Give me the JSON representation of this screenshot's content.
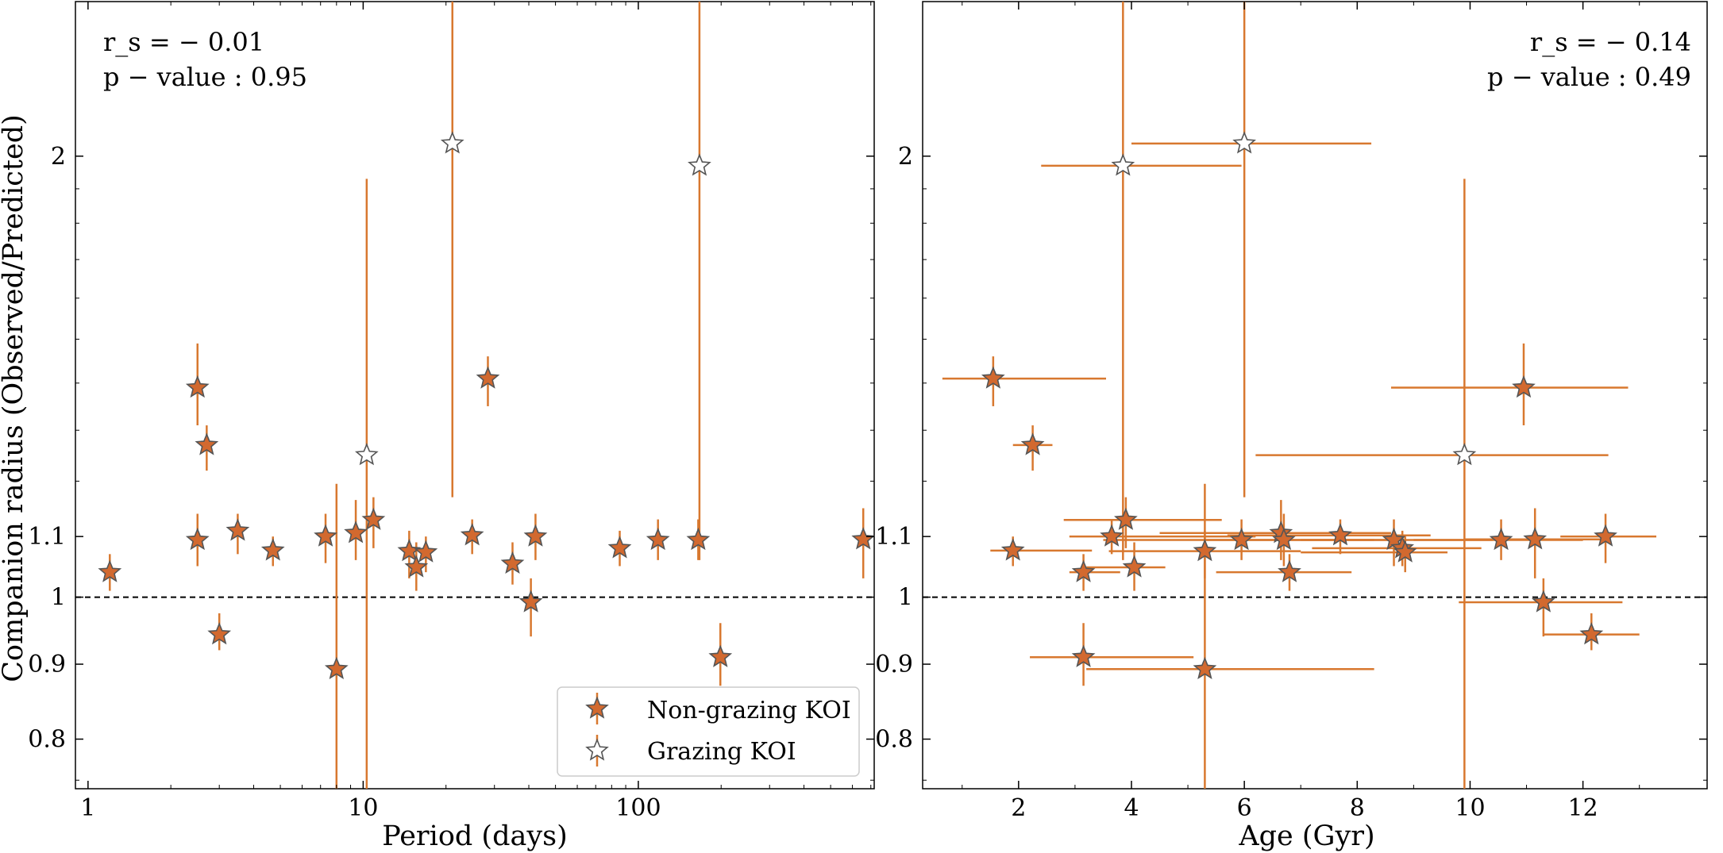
{
  "colors": {
    "nongrazing_fill": "#d2692f",
    "grazing_fill": "#ffffff",
    "errorbar": "#d8782f",
    "marker_edge": "#555555",
    "refline": "#000000"
  },
  "legend_entries": [
    "Non-grazing KOI",
    "Grazing KOI"
  ],
  "shared": {
    "ylabel": "Companion radius (Observed/Predicted)",
    "ytick_labels": [
      "0.8",
      "0.9",
      "1",
      "1.1",
      "2"
    ],
    "ytick_values": [
      0.8,
      0.9,
      1.0,
      1.1,
      2.0
    ],
    "ylim_log": [
      0.74,
      2.55
    ],
    "reference_line_y": 1.0
  },
  "chart_data": [
    {
      "type": "scatter",
      "title": "",
      "xscale": "log",
      "xlabel": "Period (days)",
      "xlim": [
        0.9,
        720
      ],
      "xtick_values": [
        1,
        10,
        100
      ],
      "xtick_labels": [
        "1",
        "10",
        "100"
      ],
      "ylabel": "Companion radius (Observed/Predicted)",
      "stat_rs": "r_s = − 0.01",
      "stat_p": "p − value : 0.95",
      "legend": "bottom-right",
      "series": [
        {
          "name": "Non-grazing KOI",
          "points": [
            {
              "x": 1.2,
              "y": 1.04,
              "ylo": 1.01,
              "yhi": 1.07
            },
            {
              "x": 2.5,
              "y": 1.094,
              "ylo": 1.05,
              "yhi": 1.14
            },
            {
              "x": 2.5,
              "y": 1.39,
              "ylo": 1.31,
              "yhi": 1.49
            },
            {
              "x": 2.7,
              "y": 1.27,
              "ylo": 1.22,
              "yhi": 1.31
            },
            {
              "x": 3.0,
              "y": 0.943,
              "ylo": 0.92,
              "yhi": 0.975
            },
            {
              "x": 3.5,
              "y": 1.11,
              "ylo": 1.07,
              "yhi": 1.14
            },
            {
              "x": 4.7,
              "y": 1.076,
              "ylo": 1.05,
              "yhi": 1.1
            },
            {
              "x": 7.3,
              "y": 1.1,
              "ylo": 1.055,
              "yhi": 1.14
            },
            {
              "x": 8.0,
              "y": 0.893,
              "ylo": 0.74,
              "yhi": 1.195
            },
            {
              "x": 9.4,
              "y": 1.106,
              "ylo": 1.06,
              "yhi": 1.165
            },
            {
              "x": 10.9,
              "y": 1.129,
              "ylo": 1.08,
              "yhi": 1.17
            },
            {
              "x": 14.7,
              "y": 1.075,
              "ylo": 1.03,
              "yhi": 1.11
            },
            {
              "x": 15.6,
              "y": 1.048,
              "ylo": 1.01,
              "yhi": 1.09
            },
            {
              "x": 16.9,
              "y": 1.073,
              "ylo": 1.04,
              "yhi": 1.1
            },
            {
              "x": 24.9,
              "y": 1.102,
              "ylo": 1.07,
              "yhi": 1.13
            },
            {
              "x": 28.4,
              "y": 1.41,
              "ylo": 1.35,
              "yhi": 1.46
            },
            {
              "x": 34.9,
              "y": 1.054,
              "ylo": 1.02,
              "yhi": 1.09
            },
            {
              "x": 40.7,
              "y": 0.992,
              "ylo": 0.94,
              "yhi": 1.03
            },
            {
              "x": 42.3,
              "y": 1.1,
              "ylo": 1.06,
              "yhi": 1.14
            },
            {
              "x": 85.6,
              "y": 1.08,
              "ylo": 1.05,
              "yhi": 1.11
            },
            {
              "x": 117.9,
              "y": 1.094,
              "ylo": 1.06,
              "yhi": 1.13
            },
            {
              "x": 165.1,
              "y": 1.094,
              "ylo": 1.06,
              "yhi": 1.13
            },
            {
              "x": 198.7,
              "y": 0.91,
              "ylo": 0.87,
              "yhi": 0.96
            },
            {
              "x": 657,
              "y": 1.095,
              "ylo": 1.03,
              "yhi": 1.15
            }
          ]
        },
        {
          "name": "Grazing KOI",
          "points": [
            {
              "x": 10.3,
              "y": 1.25,
              "ylo": 0.74,
              "yhi": 1.93
            },
            {
              "x": 21.1,
              "y": 2.04,
              "ylo": 1.17,
              "yhi": 2.55
            },
            {
              "x": 166.8,
              "y": 1.97,
              "ylo": 1.06,
              "yhi": 2.55
            }
          ]
        }
      ]
    },
    {
      "type": "scatter",
      "title": "",
      "xscale": "linear",
      "xlabel": "Age (Gyr)",
      "xlim": [
        0.3,
        14.2
      ],
      "xtick_values": [
        2,
        4,
        6,
        8,
        10,
        12
      ],
      "xtick_labels": [
        "2",
        "4",
        "6",
        "8",
        "10",
        "12"
      ],
      "stat_rs": "r_s = − 0.14",
      "stat_p": "p − value : 0.49",
      "series": [
        {
          "name": "Non-grazing KOI",
          "points": [
            {
              "x": 1.55,
              "y": 1.41,
              "xlo": 0.65,
              "xhi": 3.55,
              "ylo": 1.35,
              "yhi": 1.46
            },
            {
              "x": 2.25,
              "y": 1.27,
              "xlo": 1.9,
              "xhi": 2.6,
              "ylo": 1.22,
              "yhi": 1.31
            },
            {
              "x": 1.9,
              "y": 1.076,
              "xlo": 1.5,
              "xhi": 3.3,
              "ylo": 1.05,
              "yhi": 1.1
            },
            {
              "x": 3.15,
              "y": 1.04,
              "xlo": 2.9,
              "xhi": 3.8,
              "ylo": 1.01,
              "yhi": 1.07
            },
            {
              "x": 3.15,
              "y": 0.91,
              "xlo": 2.2,
              "xhi": 5.1,
              "ylo": 0.87,
              "yhi": 0.96
            },
            {
              "x": 3.65,
              "y": 1.1,
              "xlo": 2.9,
              "xhi": 6.2,
              "ylo": 1.07,
              "yhi": 1.13
            },
            {
              "x": 3.9,
              "y": 1.129,
              "xlo": 2.8,
              "xhi": 5.6,
              "ylo": 1.08,
              "yhi": 1.17
            },
            {
              "x": 4.05,
              "y": 1.048,
              "xlo": 3.2,
              "xhi": 4.6,
              "ylo": 1.01,
              "yhi": 1.09
            },
            {
              "x": 5.3,
              "y": 1.075,
              "xlo": 3.6,
              "xhi": 7.0,
              "ylo": 1.03,
              "yhi": 1.11
            },
            {
              "x": 5.3,
              "y": 0.893,
              "xlo": 3.2,
              "xhi": 8.3,
              "ylo": 0.74,
              "yhi": 1.195
            },
            {
              "x": 5.95,
              "y": 1.094,
              "xlo": 3.5,
              "xhi": 8.8,
              "ylo": 1.06,
              "yhi": 1.13
            },
            {
              "x": 6.65,
              "y": 1.106,
              "xlo": 4.5,
              "xhi": 8.6,
              "ylo": 1.06,
              "yhi": 1.165
            },
            {
              "x": 6.7,
              "y": 1.094,
              "xlo": 5.3,
              "xhi": 8.3,
              "ylo": 1.05,
              "yhi": 1.14
            },
            {
              "x": 6.8,
              "y": 1.04,
              "xlo": 5.5,
              "xhi": 7.9,
              "ylo": 1.01,
              "yhi": 1.07
            },
            {
              "x": 7.7,
              "y": 1.102,
              "xlo": 5.7,
              "xhi": 9.3,
              "ylo": 1.07,
              "yhi": 1.13
            },
            {
              "x": 8.65,
              "y": 1.094,
              "xlo": 7.0,
              "xhi": 10.4,
              "ylo": 1.05,
              "yhi": 1.13
            },
            {
              "x": 8.8,
              "y": 1.08,
              "xlo": 7.2,
              "xhi": 10.2,
              "ylo": 1.05,
              "yhi": 1.11
            },
            {
              "x": 8.85,
              "y": 1.073,
              "xlo": 7.0,
              "xhi": 9.6,
              "ylo": 1.04,
              "yhi": 1.1
            },
            {
              "x": 10.55,
              "y": 1.094,
              "xlo": 9.0,
              "xhi": 12.0,
              "ylo": 1.06,
              "yhi": 1.13
            },
            {
              "x": 10.95,
              "y": 1.39,
              "xlo": 8.6,
              "xhi": 12.8,
              "ylo": 1.31,
              "yhi": 1.49
            },
            {
              "x": 11.15,
              "y": 1.095,
              "xlo": 9.9,
              "xhi": 12.4,
              "ylo": 1.03,
              "yhi": 1.15
            },
            {
              "x": 11.3,
              "y": 0.992,
              "xlo": 9.8,
              "xhi": 12.7,
              "ylo": 0.94,
              "yhi": 1.03
            },
            {
              "x": 12.15,
              "y": 0.943,
              "xlo": 11.3,
              "xhi": 13.0,
              "ylo": 0.92,
              "yhi": 0.975
            },
            {
              "x": 12.4,
              "y": 1.1,
              "xlo": 11.6,
              "xhi": 13.3,
              "ylo": 1.055,
              "yhi": 1.14
            }
          ]
        },
        {
          "name": "Grazing KOI",
          "points": [
            {
              "x": 3.85,
              "y": 1.97,
              "xlo": 2.4,
              "xhi": 5.95,
              "ylo": 1.06,
              "yhi": 2.55
            },
            {
              "x": 6.0,
              "y": 2.04,
              "xlo": 4.0,
              "xhi": 8.25,
              "ylo": 1.17,
              "yhi": 2.55
            },
            {
              "x": 9.9,
              "y": 1.25,
              "xlo": 6.2,
              "xhi": 12.45,
              "ylo": 0.74,
              "yhi": 1.93
            }
          ]
        }
      ]
    }
  ]
}
